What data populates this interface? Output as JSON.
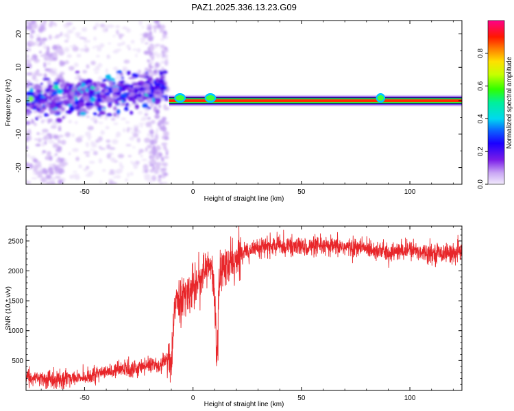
{
  "title": "PAZ1.2025.336.13.23.G09",
  "chart_data": [
    {
      "type": "heatmap",
      "name": "spectrogram",
      "xlabel": "Height of straight line (km)",
      "ylabel": "Frequency (Hz)",
      "xlim": [
        -77,
        124
      ],
      "ylim": [
        -25,
        24
      ],
      "xticks": [
        -50,
        0,
        50,
        100
      ],
      "yticks": [
        -20,
        -10,
        0,
        10,
        20
      ],
      "colorbar": {
        "label": "Normalized spectral amplitude",
        "range": [
          0,
          1
        ],
        "ticks": [
          0.0,
          0.2,
          0.4,
          0.6,
          0.8
        ],
        "tick_labels": [
          "0.0",
          "0.2",
          "0.4",
          "0.6",
          "0.8"
        ],
        "colormap": "rainbow (white-violet-blue-cyan-green-yellow-red-magenta)"
      },
      "features": {
        "noisy_region_x": [
          -77,
          -12
        ],
        "noisy_band_frequency_hz": [
          -5,
          7
        ],
        "scatter_frequency_hz": [
          -25,
          24
        ],
        "dense_scatter_columns_x": [
          [
            -77,
            -60
          ],
          [
            -22,
            -12
          ]
        ],
        "clean_tone_x": [
          -11,
          124
        ],
        "clean_tone_frequency_hz": 0,
        "tone_peak_amplitude": 0.85,
        "tone_bump_x": [
          [
            -8,
            -4
          ],
          [
            6,
            10
          ],
          [
            85,
            88
          ]
        ]
      }
    },
    {
      "type": "line",
      "name": "snr",
      "xlabel": "Height of straight line (km)",
      "ylabel": "SNR (10 * v/v)",
      "xlim": [
        -77,
        124
      ],
      "ylim": [
        0,
        2750
      ],
      "xticks": [
        -50,
        0,
        50,
        100
      ],
      "yticks": [
        500,
        1000,
        1500,
        2000,
        2500
      ],
      "color": "#e8262a",
      "series": [
        {
          "name": "SNR",
          "x": [
            -77,
            -60,
            -45,
            -35,
            -25,
            -20,
            -15,
            -12,
            -10,
            -8,
            -5,
            -2,
            0,
            3,
            6,
            8,
            10,
            11,
            12,
            14,
            16,
            18,
            20,
            22,
            25,
            30,
            40,
            50,
            60,
            70,
            80,
            85,
            90,
            100,
            110,
            124
          ],
          "values": [
            200,
            200,
            250,
            350,
            380,
            450,
            400,
            550,
            350,
            1600,
            1500,
            1650,
            1750,
            1900,
            2000,
            2100,
            1600,
            500,
            1800,
            2100,
            2000,
            2200,
            2100,
            2300,
            2350,
            2400,
            2420,
            2400,
            2400,
            2400,
            2380,
            2350,
            2300,
            2350,
            2300,
            2300
          ]
        }
      ],
      "noise_amplitude": [
        {
          "x_from": -77,
          "x_to": -12,
          "amplitude": 120
        },
        {
          "x_from": -12,
          "x_to": 22,
          "amplitude": 300
        },
        {
          "x_from": 22,
          "x_to": 124,
          "amplitude": 130
        }
      ]
    }
  ]
}
